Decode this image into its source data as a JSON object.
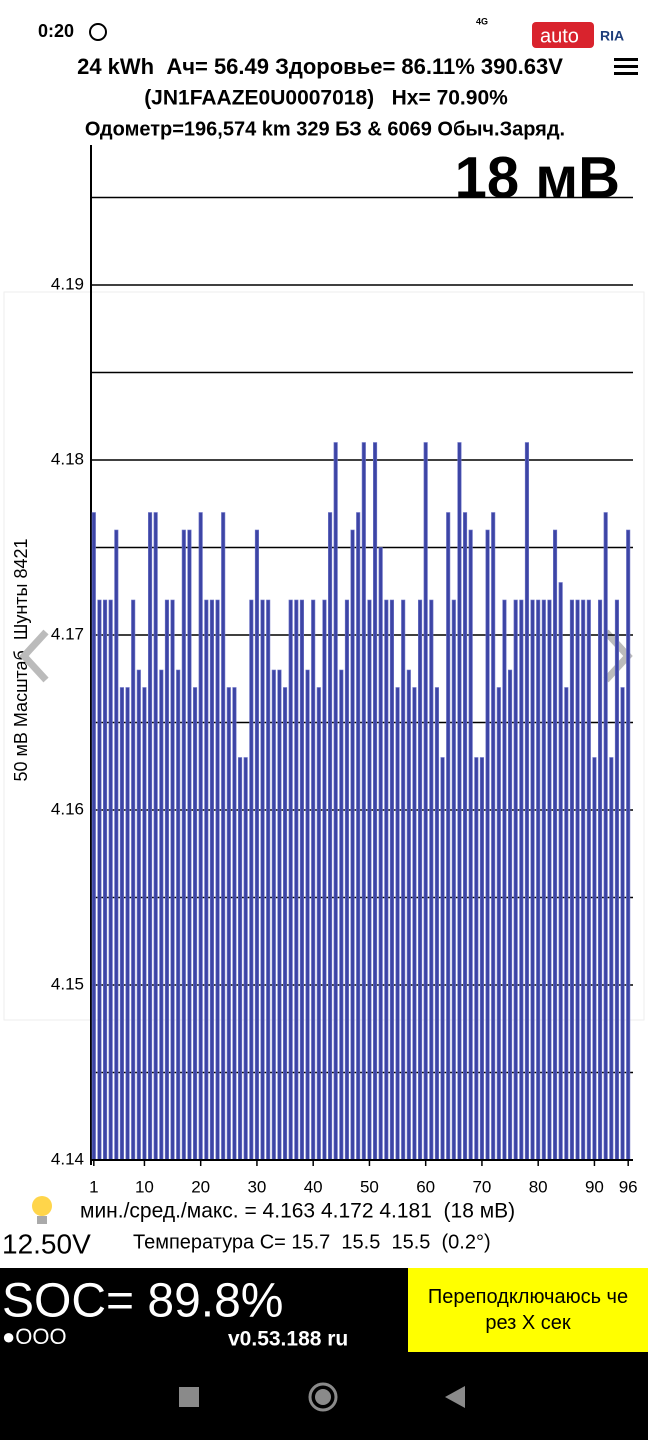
{
  "status_bar": {
    "time": "0:20",
    "network": "4G"
  },
  "watermark": [
    "auto",
    "RIA"
  ],
  "header": {
    "line1": "24 kWh  Ач= 56.49 Здоровье= 86.11% 390.63V",
    "line2": "(JN1FAAZE0U0007018)   Hx= 70.90%",
    "line3": "Одометр=196,574 km 329 БЗ & 6069 Обыч.Заряд."
  },
  "chart_data": {
    "type": "bar",
    "annotation": "18 мВ",
    "ylabel": "50 мВ Масштаб  Шунты 8421",
    "color": "#3d45a5",
    "x": [
      1,
      2,
      3,
      4,
      5,
      6,
      7,
      8,
      9,
      10,
      11,
      12,
      13,
      14,
      15,
      16,
      17,
      18,
      19,
      20,
      21,
      22,
      23,
      24,
      25,
      26,
      27,
      28,
      29,
      30,
      31,
      32,
      33,
      34,
      35,
      36,
      37,
      38,
      39,
      40,
      41,
      42,
      43,
      44,
      45,
      46,
      47,
      48,
      49,
      50,
      51,
      52,
      53,
      54,
      55,
      56,
      57,
      58,
      59,
      60,
      61,
      62,
      63,
      64,
      65,
      66,
      67,
      68,
      69,
      70,
      71,
      72,
      73,
      74,
      75,
      76,
      77,
      78,
      79,
      80,
      81,
      82,
      83,
      84,
      85,
      86,
      87,
      88,
      89,
      90,
      91,
      92,
      93,
      94,
      95,
      96
    ],
    "values": [
      4.177,
      4.172,
      4.172,
      4.172,
      4.176,
      4.167,
      4.167,
      4.172,
      4.168,
      4.167,
      4.177,
      4.177,
      4.168,
      4.172,
      4.172,
      4.168,
      4.176,
      4.176,
      4.167,
      4.177,
      4.172,
      4.172,
      4.172,
      4.177,
      4.167,
      4.167,
      4.163,
      4.163,
      4.172,
      4.176,
      4.172,
      4.172,
      4.168,
      4.168,
      4.167,
      4.172,
      4.172,
      4.172,
      4.168,
      4.172,
      4.167,
      4.172,
      4.177,
      4.181,
      4.168,
      4.172,
      4.176,
      4.177,
      4.181,
      4.172,
      4.181,
      4.175,
      4.172,
      4.172,
      4.167,
      4.172,
      4.168,
      4.167,
      4.172,
      4.181,
      4.172,
      4.167,
      4.163,
      4.177,
      4.172,
      4.181,
      4.177,
      4.176,
      4.163,
      4.163,
      4.176,
      4.177,
      4.167,
      4.172,
      4.168,
      4.172,
      4.172,
      4.181,
      4.172,
      4.172,
      4.172,
      4.172,
      4.176,
      4.173,
      4.167,
      4.172,
      4.172,
      4.172,
      4.172,
      4.163,
      4.172,
      4.177,
      4.163,
      4.172,
      4.167,
      4.176
    ],
    "xlim": [
      0.5,
      96.5
    ],
    "xticks": [
      1,
      10,
      20,
      30,
      40,
      50,
      60,
      70,
      80,
      90,
      96
    ],
    "ylim": [
      4.14,
      4.198
    ],
    "yticks": [
      4.14,
      4.15,
      4.16,
      4.17,
      4.18,
      4.19
    ],
    "minor_yticks": [
      4.145,
      4.155,
      4.165,
      4.175,
      4.185,
      4.195
    ],
    "grid": true
  },
  "stats": {
    "line1": "мин./сред./макс. = 4.163 4.172 4.181  (18 мВ)",
    "line2": "Температура C= 15.7  15.5  15.5  (0.2°)",
    "voltage": "12.50V"
  },
  "footer": {
    "soc": "SOC= 89.8%",
    "dots": "●OOO",
    "version": "v0.53.188 ru",
    "button": "Переподключаюсь через X сек"
  }
}
